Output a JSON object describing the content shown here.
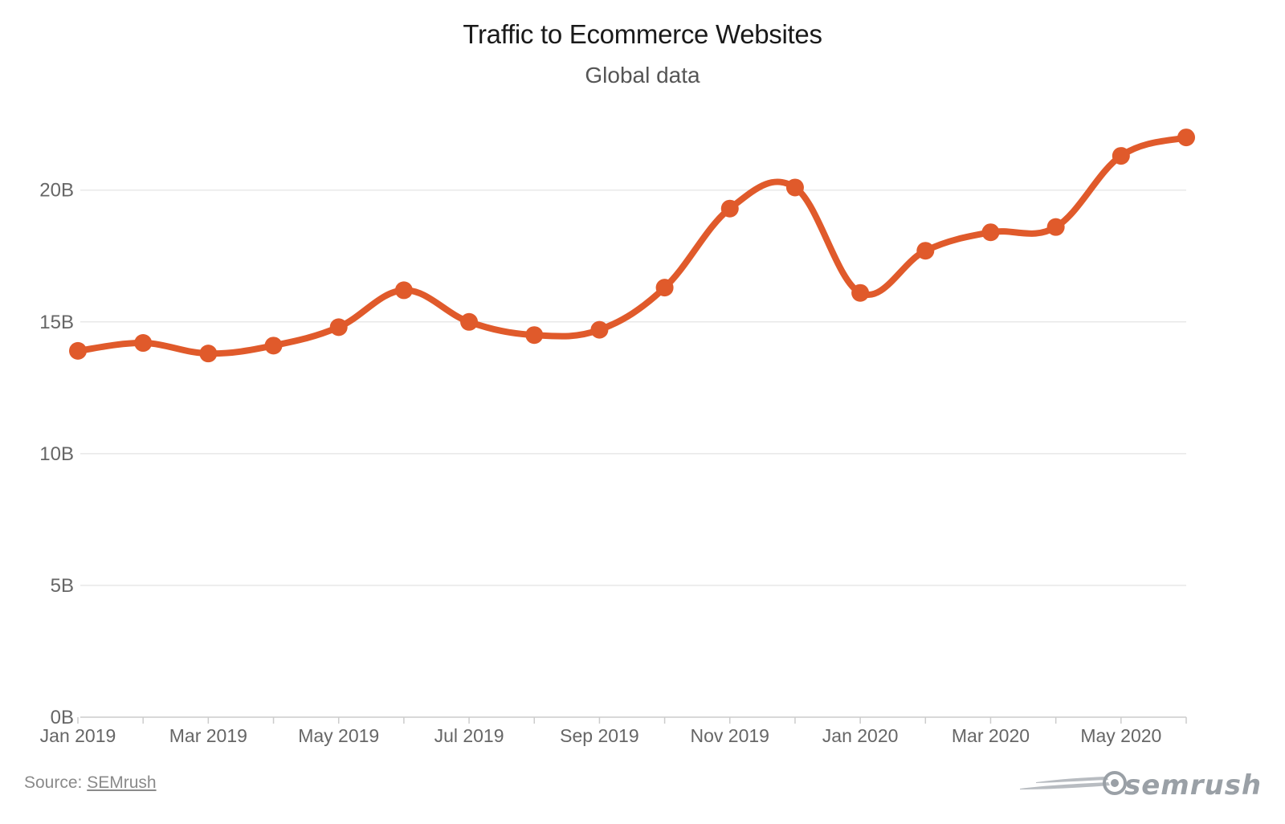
{
  "chart_data": {
    "type": "line",
    "title": "Traffic to Ecommerce Websites",
    "subtitle": "Global data",
    "x": [
      "Jan 2019",
      "Feb 2019",
      "Mar 2019",
      "Apr 2019",
      "May 2019",
      "Jun 2019",
      "Jul 2019",
      "Aug 2019",
      "Sep 2019",
      "Oct 2019",
      "Nov 2019",
      "Dec 2019",
      "Jan 2020",
      "Feb 2020",
      "Mar 2020",
      "Apr 2020",
      "May 2020",
      "Jun 2020"
    ],
    "x_tick_labels": [
      "Jan 2019",
      "Mar 2019",
      "May 2019",
      "Jul 2019",
      "Sep 2019",
      "Nov 2019",
      "Jan 2020",
      "Mar 2020",
      "May 2020"
    ],
    "series": [
      {
        "values": [
          13.9,
          14.2,
          13.8,
          14.1,
          14.8,
          16.2,
          15.0,
          14.5,
          14.7,
          16.3,
          19.3,
          20.1,
          16.1,
          17.7,
          18.4,
          18.6,
          21.3,
          22.0
        ],
        "color": "#e05a2b"
      }
    ],
    "ylim": [
      0,
      22
    ],
    "y_ticks": [
      0,
      5,
      10,
      15,
      20
    ],
    "y_tick_labels": [
      "0B",
      "5B",
      "10B",
      "15B",
      "20B"
    ],
    "grid": true,
    "legend": "none"
  },
  "footer": {
    "source_label": "Source: ",
    "source_link": "SEMrush",
    "logo_text": "semrush"
  },
  "colors": {
    "line": "#e05a2b",
    "grid": "#e8e8e8"
  }
}
